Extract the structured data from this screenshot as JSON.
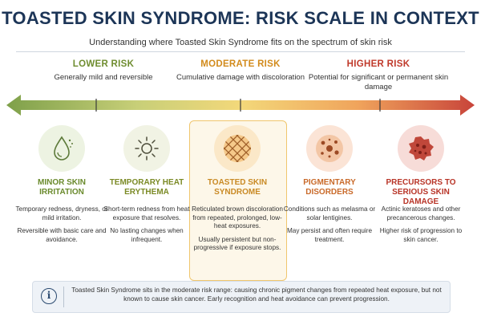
{
  "header": {
    "title": "TOASTED SKIN SYNDROME: RISK SCALE IN CONTEXT",
    "subtitle": "Understanding where Toasted Skin Syndrome fits on the spectrum of skin risk"
  },
  "risk_levels": [
    {
      "label": "LOWER RISK",
      "description": "Generally mild and reversible",
      "color": "#6f8d30"
    },
    {
      "label": "MODERATE RISK",
      "description": "Cumulative damage with discoloration",
      "color": "#d28b1c"
    },
    {
      "label": "HIGHER RISK",
      "description": "Potential for significant or permanent skin damage",
      "color": "#c03a2b"
    }
  ],
  "scale": {
    "gradient": [
      "#7ea04a",
      "#c8cf78",
      "#f3d87a",
      "#f0a45c",
      "#c8443a"
    ]
  },
  "conditions": [
    {
      "icon": "droplet-icon",
      "name": "MINOR SKIN IRRITATION",
      "body": [
        "Temporary redness, dryness, or mild irritation.",
        "Reversible with basic care and avoidance."
      ]
    },
    {
      "icon": "sun-icon",
      "name": "TEMPORARY HEAT ERYTHEMA",
      "body": [
        "Short-term redness from heat exposure that resolves.",
        "No lasting changes when infrequent."
      ]
    },
    {
      "icon": "reticular-pattern-icon",
      "name": "TOASTED SKIN SYNDROME",
      "body": [
        "Reticulated brown discoloration from repeated, prolonged, low-heat exposures.",
        "Usually persistent but non-progressive if exposure stops."
      ]
    },
    {
      "icon": "pigment-spots-icon",
      "name": "PIGMENTARY DISORDERS",
      "body": [
        "Conditions such as melasma or solar lentigines.",
        "May persist and often require treatment."
      ]
    },
    {
      "icon": "lesion-icon",
      "name": "PRECURSORS TO SERIOUS SKIN DAMAGE",
      "body": [
        "Actinic keratoses and other precancerous changes.",
        "Higher risk of progression to skin cancer."
      ]
    }
  ],
  "note": {
    "icon": "info-icon",
    "symbol": "i",
    "text": "Toasted Skin Syndrome sits in the moderate risk range: causing chronic pigment changes from repeated heat exposure, but not known to cause skin cancer. Early recognition and heat avoidance can prevent progression."
  }
}
